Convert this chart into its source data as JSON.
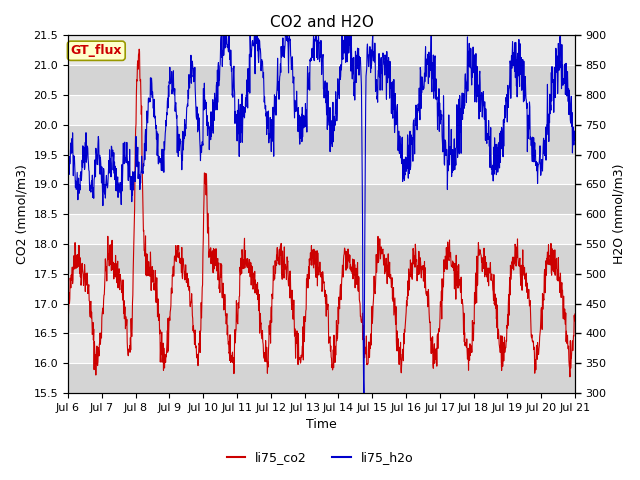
{
  "title": "CO2 and H2O",
  "xlabel": "Time",
  "ylabel_left": "CO2 (mmol/m3)",
  "ylabel_right": "H2O (mmol/m3)",
  "ylim_left": [
    15.5,
    21.5
  ],
  "ylim_right": [
    300,
    900
  ],
  "yticks_left": [
    15.5,
    16.0,
    16.5,
    17.0,
    17.5,
    18.0,
    18.5,
    19.0,
    19.5,
    20.0,
    20.5,
    21.0,
    21.5
  ],
  "yticks_right": [
    300,
    350,
    400,
    450,
    500,
    550,
    600,
    650,
    700,
    750,
    800,
    850,
    900
  ],
  "xtick_labels": [
    "Jul 6",
    "Jul 7",
    "Jul 8",
    "Jul 9",
    "Jul 10",
    "Jul 11",
    "Jul 12",
    "Jul 13",
    "Jul 14",
    "Jul 15",
    "Jul 16",
    "Jul 17",
    "Jul 18",
    "Jul 19",
    "Jul 20",
    "Jul 21"
  ],
  "co2_color": "#cc0000",
  "h2o_color": "#0000cc",
  "legend_label_co2": "li75_co2",
  "legend_label_h2o": "li75_h2o",
  "annotation_text": "GT_flux",
  "annotation_bg": "#ffffcc",
  "annotation_border": "#999900",
  "bg_light": "#dcdcdc",
  "bg_white": "#f0f0f0",
  "grid_color": "#ffffff",
  "title_fontsize": 11,
  "axis_fontsize": 9,
  "tick_fontsize": 8,
  "legend_fontsize": 9,
  "n_days": 15,
  "n_per_day": 96,
  "seed": 42
}
